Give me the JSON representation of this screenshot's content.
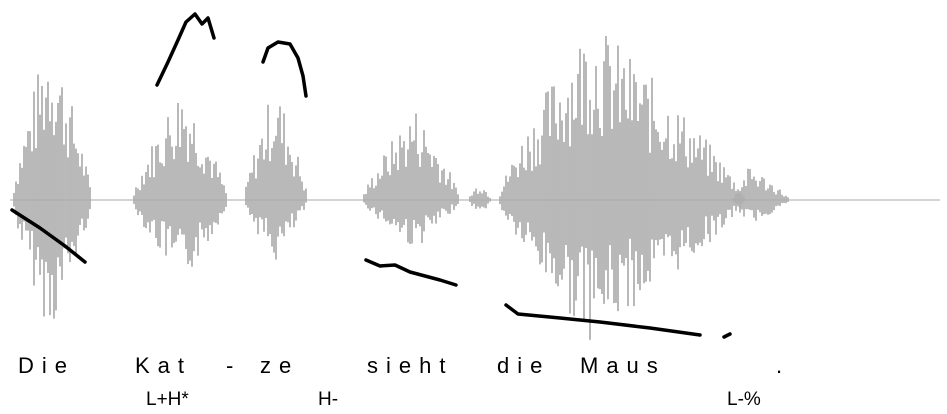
{
  "words": [
    "Die",
    "Kat",
    "-",
    "ze",
    "sieht",
    "die",
    "Maus",
    "."
  ],
  "tones": [
    "L+H*",
    "H-",
    "L-%"
  ]
}
